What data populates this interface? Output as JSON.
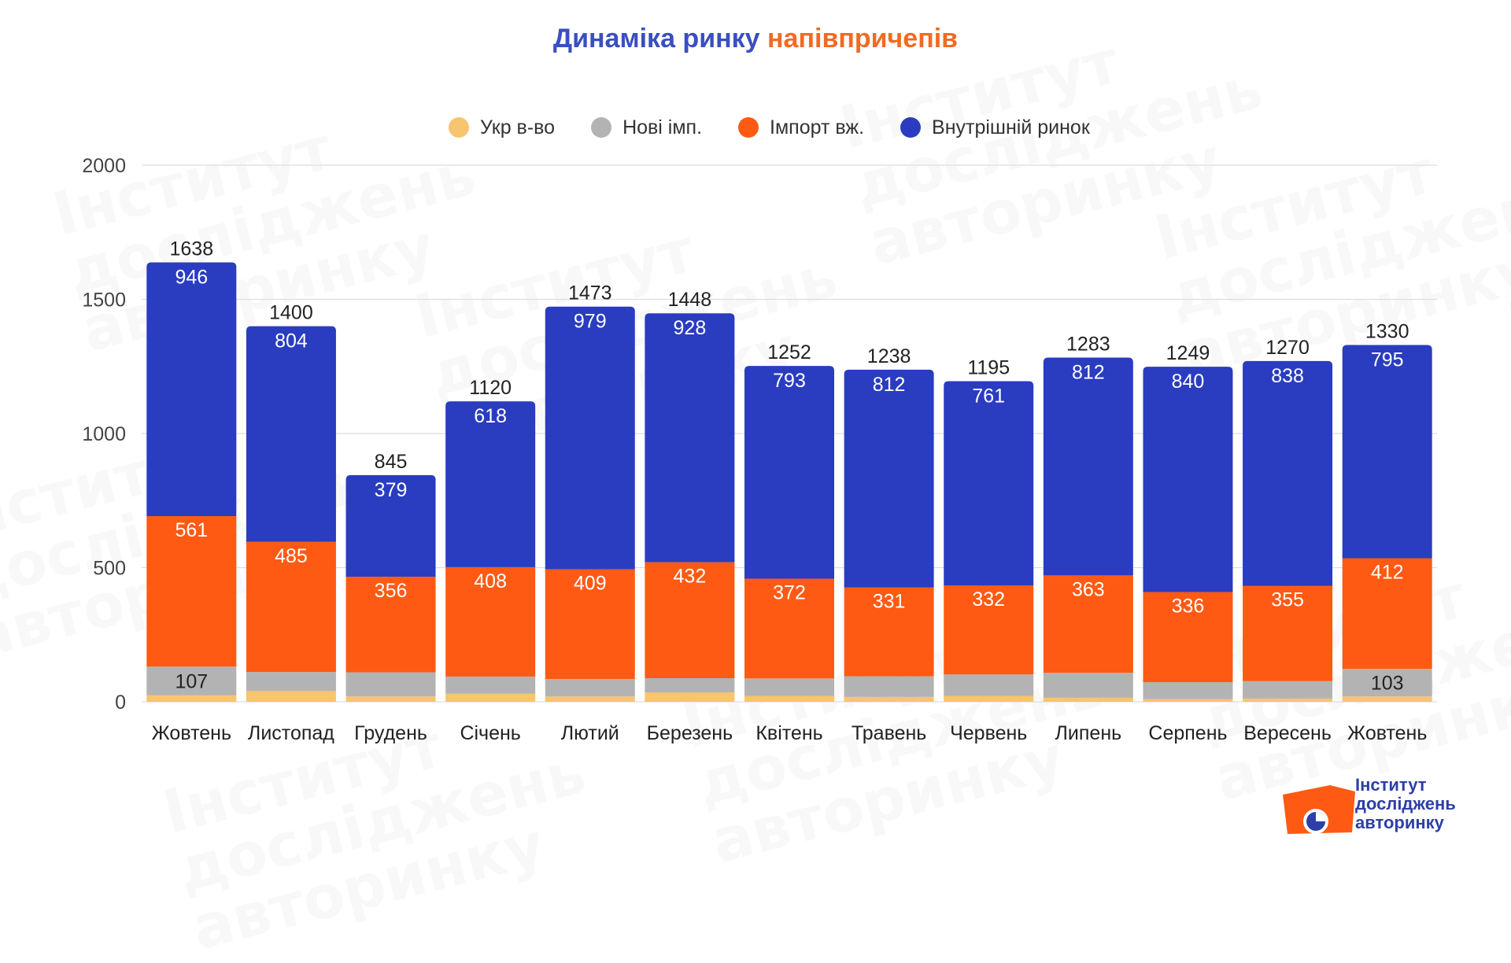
{
  "title": {
    "part1": "Динаміка ринку",
    "part2": "напівпричепів"
  },
  "colors": {
    "title_blue": "#3a4fc0",
    "title_orange": "#f26a22",
    "ukr": "#f8c46e",
    "new_imp": "#b3b3b3",
    "import_used": "#ff5a14",
    "domestic": "#2a3cc0",
    "grid": "#dddddd"
  },
  "watermark": {
    "lines": [
      "Інститут",
      "досліджень",
      "авторинку"
    ]
  },
  "logo": {
    "lines": [
      "Інститут",
      "досліджень",
      "авторинку"
    ]
  },
  "chart_data": {
    "type": "bar",
    "stacked": true,
    "title": "Динаміка ринку напівпричепів",
    "xlabel": "",
    "ylabel": "",
    "ylim": [
      0,
      2000
    ],
    "yticks": [
      0,
      500,
      1000,
      1500,
      2000
    ],
    "grid": true,
    "legend_position": "top",
    "categories": [
      "Жовтень",
      "Листопад",
      "Грудень",
      "Січень",
      "Лютий",
      "Березень",
      "Квітень",
      "Травень",
      "Червень",
      "Липень",
      "Серпень",
      "Вересень",
      "Жовтень"
    ],
    "series": [
      {
        "name": "Укр в-во",
        "color": "#f8c46e",
        "values": [
          24,
          40,
          20,
          30,
          20,
          35,
          22,
          18,
          22,
          15,
          10,
          12,
          20
        ],
        "labels": [
          "",
          "",
          "",
          "",
          "",
          "",
          "",
          "",
          "",
          "",
          "",
          "",
          ""
        ]
      },
      {
        "name": "Нові імп.",
        "color": "#b3b3b3",
        "values": [
          107,
          71,
          90,
          64,
          65,
          53,
          65,
          77,
          80,
          93,
          63,
          65,
          103
        ],
        "labels": [
          "107",
          "",
          "",
          "",
          "",
          "",
          "",
          "",
          "",
          "",
          "",
          "",
          "103"
        ]
      },
      {
        "name": "Імпорт вж.",
        "color": "#ff5a14",
        "values": [
          561,
          485,
          356,
          408,
          409,
          432,
          372,
          331,
          332,
          363,
          336,
          355,
          412
        ],
        "labels": [
          "561",
          "485",
          "356",
          "408",
          "409",
          "432",
          "372",
          "331",
          "332",
          "363",
          "336",
          "355",
          "412"
        ]
      },
      {
        "name": "Внутрішній ринок",
        "color": "#2a3cc0",
        "values": [
          946,
          804,
          379,
          618,
          979,
          928,
          793,
          812,
          761,
          812,
          840,
          838,
          795
        ],
        "labels": [
          "946",
          "804",
          "379",
          "618",
          "979",
          "928",
          "793",
          "812",
          "761",
          "812",
          "840",
          "838",
          "795"
        ]
      }
    ],
    "totals": [
      1638,
      1400,
      845,
      1120,
      1473,
      1448,
      1252,
      1238,
      1195,
      1283,
      1249,
      1270,
      1330
    ]
  }
}
